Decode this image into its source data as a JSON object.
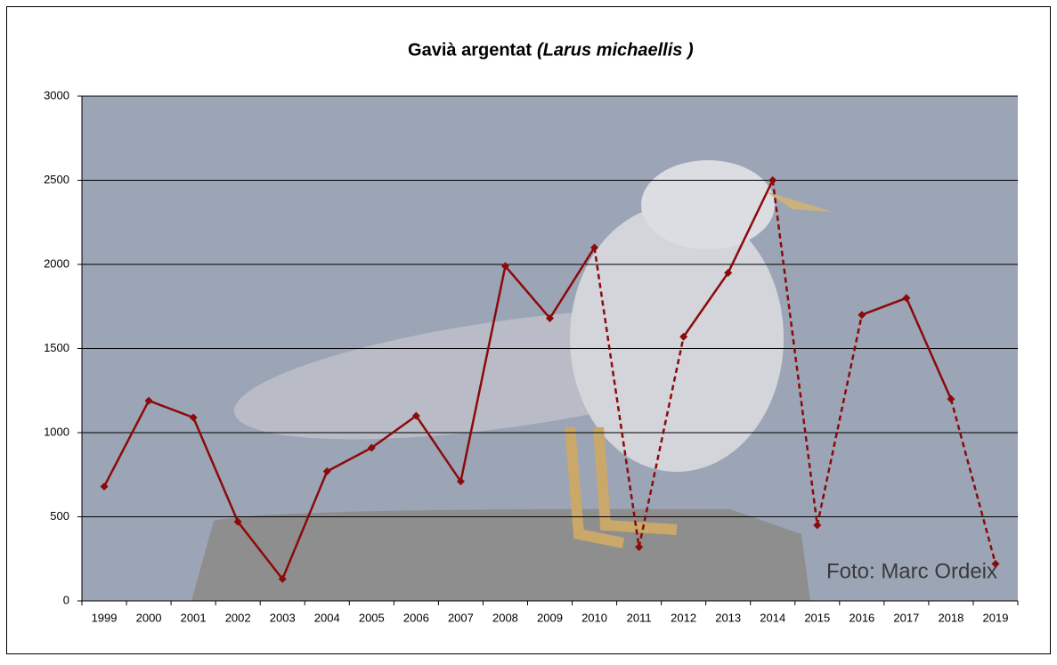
{
  "chart_data": {
    "type": "line",
    "title_parts": [
      "Gavià argentat",
      "(Larus michaellis )"
    ],
    "annotations": [
      "Foto: Marc Ordeix"
    ],
    "categories": [
      "1999",
      "2000",
      "2001",
      "2002",
      "2003",
      "2004",
      "2005",
      "2006",
      "2007",
      "2008",
      "2009",
      "2010",
      "2011",
      "2012",
      "2013",
      "2014",
      "2015",
      "2016",
      "2017",
      "2018",
      "2019"
    ],
    "values": [
      680,
      1190,
      1090,
      470,
      130,
      770,
      910,
      1100,
      710,
      1990,
      1680,
      2100,
      320,
      1570,
      1950,
      2500,
      450,
      1700,
      1800,
      1200,
      220
    ],
    "estimated": [
      false,
      false,
      false,
      false,
      false,
      false,
      false,
      false,
      false,
      false,
      false,
      false,
      true,
      false,
      false,
      false,
      true,
      false,
      false,
      false,
      true
    ],
    "color": "#8b0a0a",
    "ylim": [
      0,
      3000
    ],
    "yticks": [
      0,
      500,
      1000,
      1500,
      2000,
      2500,
      3000
    ],
    "grid": true
  }
}
